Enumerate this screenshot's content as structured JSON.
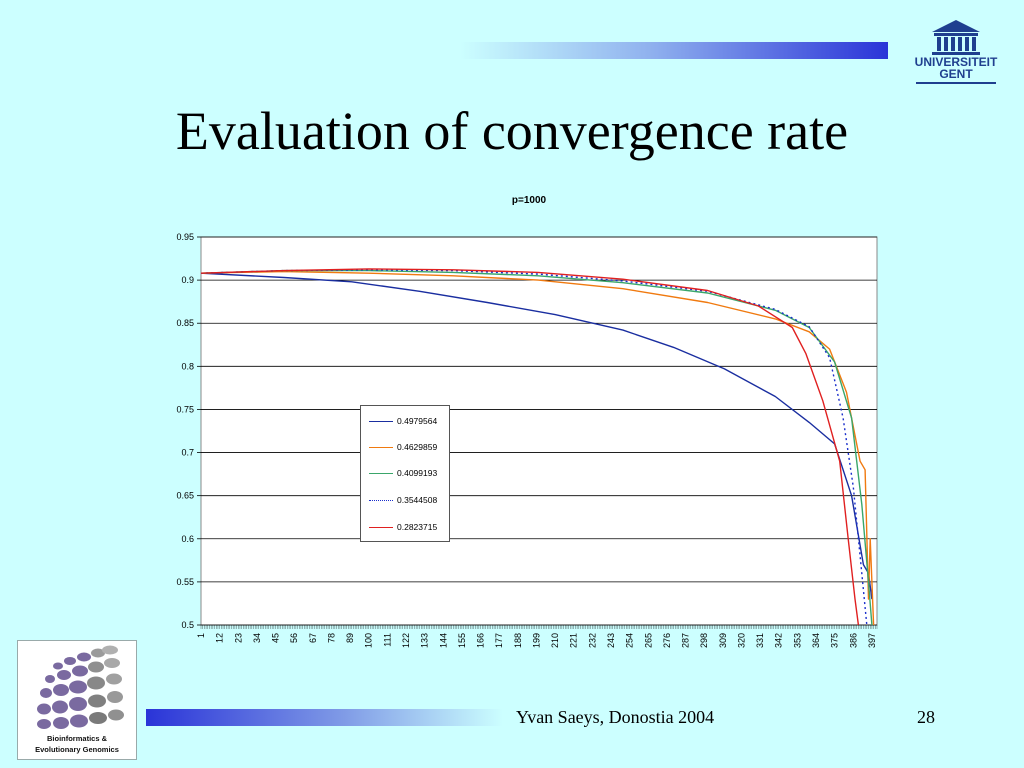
{
  "slide": {
    "title": "Evaluation of convergence rate",
    "footer": "Yvan Saeys, Donostia 2004",
    "page_number": "28"
  },
  "logos": {
    "university": [
      "UNIVERSITEIT",
      "GENT"
    ],
    "group": [
      "Bioinformatics &",
      "Evolutionary Genomics"
    ]
  },
  "chart_data": {
    "type": "line",
    "title": "p=1000",
    "xlabel": "",
    "ylabel": "",
    "ylim": [
      0.5,
      0.95
    ],
    "yticks": [
      0.5,
      0.55,
      0.6,
      0.65,
      0.7,
      0.75,
      0.8,
      0.85,
      0.9,
      0.95
    ],
    "xrange": [
      1,
      400
    ],
    "xticks": [
      1,
      12,
      23,
      34,
      45,
      56,
      67,
      78,
      89,
      100,
      111,
      122,
      133,
      144,
      155,
      166,
      177,
      188,
      199,
      210,
      221,
      232,
      243,
      254,
      265,
      276,
      287,
      298,
      309,
      320,
      331,
      342,
      353,
      364,
      375,
      386,
      397
    ],
    "grid": true,
    "legend_position": "left-center",
    "series": [
      {
        "name": "0.4979564",
        "color": "#1a2ea0",
        "dash": false,
        "x": [
          1,
          50,
          90,
          130,
          170,
          210,
          250,
          280,
          310,
          340,
          360,
          375,
          385,
          392,
          395,
          397
        ],
        "y": [
          0.908,
          0.903,
          0.898,
          0.887,
          0.874,
          0.86,
          0.842,
          0.822,
          0.797,
          0.765,
          0.735,
          0.71,
          0.65,
          0.57,
          0.56,
          0.53
        ]
      },
      {
        "name": "0.4629859",
        "color": "#f07a10",
        "dash": false,
        "x": [
          1,
          50,
          100,
          150,
          200,
          250,
          300,
          340,
          360,
          372,
          382,
          390,
          393,
          395,
          396,
          398
        ],
        "y": [
          0.908,
          0.91,
          0.908,
          0.905,
          0.9,
          0.89,
          0.874,
          0.855,
          0.84,
          0.82,
          0.77,
          0.69,
          0.68,
          0.53,
          0.6,
          0.5
        ]
      },
      {
        "name": "0.4099193",
        "color": "#3aa66a",
        "dash": false,
        "x": [
          1,
          50,
          100,
          150,
          200,
          250,
          300,
          340,
          360,
          375,
          385,
          391,
          395,
          397
        ],
        "y": [
          0.908,
          0.911,
          0.911,
          0.909,
          0.905,
          0.897,
          0.885,
          0.865,
          0.845,
          0.805,
          0.74,
          0.64,
          0.55,
          0.5
        ]
      },
      {
        "name": "0.3544508",
        "color": "#1a2ecc",
        "dash": true,
        "x": [
          1,
          50,
          100,
          150,
          200,
          250,
          300,
          340,
          360,
          372,
          380,
          386,
          391,
          394
        ],
        "y": [
          0.908,
          0.911,
          0.912,
          0.911,
          0.907,
          0.899,
          0.887,
          0.866,
          0.846,
          0.81,
          0.74,
          0.66,
          0.56,
          0.5
        ]
      },
      {
        "name": "0.2823715",
        "color": "#e02020",
        "dash": false,
        "x": [
          1,
          50,
          100,
          150,
          200,
          250,
          300,
          330,
          350,
          358,
          368,
          378,
          383,
          387,
          389
        ],
        "y": [
          0.908,
          0.911,
          0.913,
          0.912,
          0.909,
          0.901,
          0.888,
          0.87,
          0.845,
          0.815,
          0.76,
          0.69,
          0.6,
          0.53,
          0.5
        ]
      }
    ]
  }
}
